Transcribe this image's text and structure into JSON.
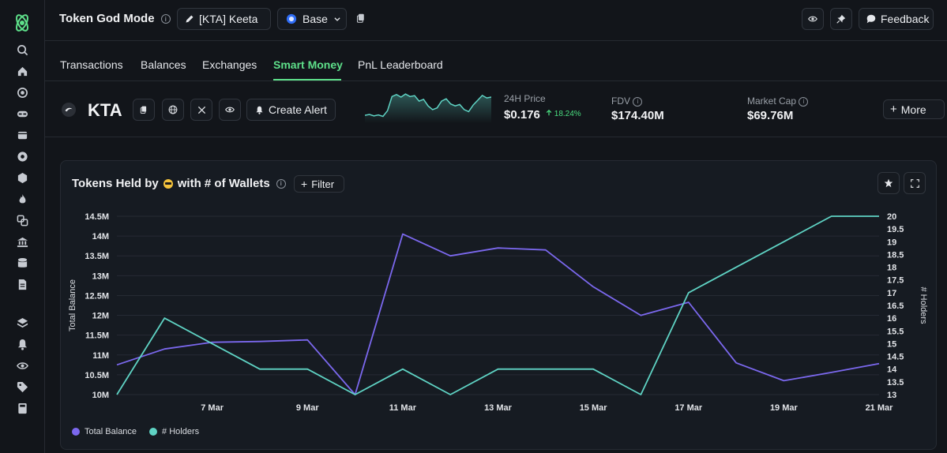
{
  "header": {
    "title": "Token God Mode",
    "token_selector": "[KTA] Keeta",
    "chain": "Base",
    "feedback": "Feedback"
  },
  "tabs": [
    "Transactions",
    "Balances",
    "Exchanges",
    "Smart Money",
    "PnL Leaderboard"
  ],
  "active_tab": "Smart Money",
  "token": {
    "symbol": "KTA",
    "create_alert": "Create Alert",
    "price_label": "24H Price",
    "price": "$0.176",
    "price_change": "18.24%",
    "fdv_label": "FDV",
    "fdv": "$174.40M",
    "mcap_label": "Market Cap",
    "mcap": "$69.76M",
    "more": "More",
    "sparkline": [
      0.22,
      0.25,
      0.2,
      0.23,
      0.18,
      0.38,
      0.88,
      0.95,
      0.86,
      0.97,
      0.88,
      0.91,
      0.72,
      0.78,
      0.55,
      0.42,
      0.48,
      0.72,
      0.8,
      0.62,
      0.55,
      0.6,
      0.42,
      0.35,
      0.58,
      0.75,
      0.92,
      0.83,
      0.86
    ]
  },
  "colors": {
    "accent": "#5ee08a",
    "balance": "#7b68ee",
    "holders": "#5fd3c4",
    "up": "#4ade80"
  },
  "card": {
    "title_prefix": "Tokens Held by",
    "title_suffix": "with # of Wallets",
    "filter": "Filter"
  },
  "chart_data": {
    "type": "line",
    "x": [
      "5 Mar",
      "6 Mar",
      "7 Mar",
      "8 Mar",
      "9 Mar",
      "10 Mar",
      "11 Mar",
      "12 Mar",
      "13 Mar",
      "14 Mar",
      "15 Mar",
      "16 Mar",
      "17 Mar",
      "18 Mar",
      "19 Mar",
      "20 Mar",
      "21 Mar"
    ],
    "x_ticks": [
      "7 Mar",
      "9 Mar",
      "11 Mar",
      "13 Mar",
      "15 Mar",
      "17 Mar",
      "19 Mar",
      "21 Mar"
    ],
    "y_left": {
      "label": "Total Balance",
      "ticks": [
        "10M",
        "10.5M",
        "11M",
        "11.5M",
        "12M",
        "12.5M",
        "13M",
        "13.5M",
        "14M",
        "14.5M"
      ],
      "range": [
        10000000,
        14500000
      ]
    },
    "y_right": {
      "label": "# Holders",
      "ticks": [
        "13",
        "13.5",
        "14",
        "14.5",
        "15",
        "15.5",
        "16",
        "16.5",
        "17",
        "17.5",
        "18",
        "18.5",
        "19",
        "19.5",
        "20"
      ],
      "range": [
        13,
        20
      ]
    },
    "series": [
      {
        "name": "Total Balance",
        "axis": "left",
        "values": [
          10750000,
          11150000,
          11320000,
          11340000,
          11380000,
          10000000,
          14050000,
          13500000,
          13700000,
          13650000,
          12720000,
          12000000,
          12330000,
          10800000,
          10350000,
          10560000,
          10780000
        ]
      },
      {
        "name": "# Holders",
        "axis": "right",
        "values": [
          13,
          16,
          15,
          14,
          14,
          13,
          14,
          13,
          14,
          14,
          14,
          13,
          17,
          18,
          19,
          20,
          20
        ]
      }
    ],
    "legend": "bottom-left",
    "grid": true
  }
}
